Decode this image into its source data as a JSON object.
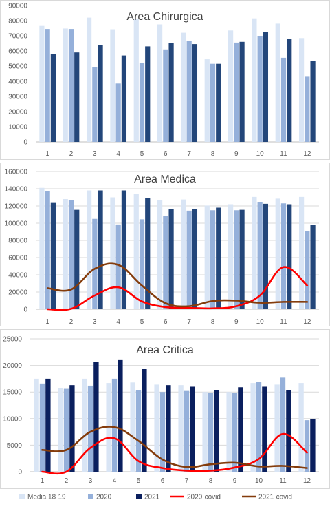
{
  "colors": {
    "media": "#d9e5f5",
    "y2020": "#95b0da",
    "y2021": "#23467a",
    "y2021_critica": "#0a1f5e",
    "covid2020": "#ff0000",
    "covid2021": "#843c0c",
    "grid": "#d9d9d9",
    "axis_text": "#595959"
  },
  "legend": [
    {
      "label": "Media 18-19",
      "kind": "bar",
      "color_key": "media"
    },
    {
      "label": "2020",
      "kind": "bar",
      "color_key": "y2020"
    },
    {
      "label": "2021",
      "kind": "bar",
      "color_key": "y2021_critica"
    },
    {
      "label": "2020-covid",
      "kind": "line",
      "color_key": "covid2020"
    },
    {
      "label": "2021-covid",
      "kind": "line",
      "color_key": "covid2021"
    }
  ],
  "chart_data": [
    {
      "type": "bar",
      "title": "Area Chirurgica",
      "categories": [
        "1",
        "2",
        "3",
        "4",
        "5",
        "6",
        "7",
        "8",
        "9",
        "10",
        "11",
        "12"
      ],
      "ylim": [
        0,
        90000
      ],
      "yticks": [
        "0",
        "10000",
        "20000",
        "30000",
        "40000",
        "50000",
        "60000",
        "70000",
        "80000",
        "90000"
      ],
      "grid": false,
      "series": [
        {
          "name": "Media 18-19",
          "type": "bar",
          "color_key": "media",
          "values": [
            76500,
            74800,
            82000,
            74300,
            81000,
            77500,
            72000,
            54500,
            73500,
            81500,
            78000,
            68500
          ]
        },
        {
          "name": "2020",
          "type": "bar",
          "color_key": "y2020",
          "values": [
            74500,
            74500,
            49500,
            38500,
            52000,
            61000,
            66500,
            51500,
            65500,
            70000,
            55500,
            43000
          ]
        },
        {
          "name": "2021",
          "type": "bar",
          "color_key": "y2021",
          "values": [
            58000,
            59000,
            64000,
            57000,
            63000,
            65000,
            64500,
            51500,
            66000,
            72500,
            68000,
            53500
          ]
        }
      ]
    },
    {
      "type": "bar",
      "title": "Area Medica",
      "categories": [
        "1",
        "2",
        "3",
        "4",
        "5",
        "6",
        "7",
        "8",
        "9",
        "10",
        "11",
        "12"
      ],
      "ylim": [
        0,
        160000
      ],
      "yticks": [
        "0",
        "20000",
        "40000",
        "60000",
        "80000",
        "100000",
        "120000",
        "140000",
        "160000"
      ],
      "grid": true,
      "series": [
        {
          "name": "Media 18-19",
          "type": "bar",
          "color_key": "media",
          "values": [
            141000,
            128000,
            138000,
            130000,
            134000,
            127000,
            127500,
            120500,
            122000,
            130500,
            128500,
            130500
          ]
        },
        {
          "name": "2020",
          "type": "bar",
          "color_key": "y2020",
          "values": [
            137000,
            127000,
            105000,
            98500,
            104500,
            108000,
            114500,
            115000,
            115000,
            124000,
            123000,
            91000
          ]
        },
        {
          "name": "2021",
          "type": "bar",
          "color_key": "y2021",
          "values": [
            123500,
            115500,
            138000,
            138000,
            129000,
            116500,
            116000,
            118000,
            115500,
            122500,
            122000,
            98000
          ]
        },
        {
          "name": "2020-covid",
          "type": "line",
          "color_key": "covid2020",
          "values": [
            0,
            500,
            16000,
            25500,
            9000,
            2500,
            1500,
            1000,
            3500,
            16000,
            49000,
            27500
          ]
        },
        {
          "name": "2021-covid",
          "type": "line",
          "color_key": "covid2021",
          "values": [
            24500,
            23000,
            47000,
            51500,
            27500,
            7000,
            3500,
            9500,
            10000,
            7500,
            8500,
            8500
          ]
        }
      ]
    },
    {
      "type": "bar",
      "title": "Area Critica",
      "categories": [
        "1",
        "2",
        "3",
        "4",
        "5",
        "6",
        "7",
        "8",
        "9",
        "10",
        "11",
        "12"
      ],
      "ylim": [
        0,
        25000
      ],
      "yticks": [
        "0",
        "5000",
        "10000",
        "15000",
        "20000",
        "25000"
      ],
      "grid": true,
      "series": [
        {
          "name": "Media 18-19",
          "type": "bar",
          "color_key": "media",
          "values": [
            17500,
            15800,
            17500,
            16700,
            16800,
            16400,
            16300,
            15000,
            15000,
            16700,
            16400,
            16700
          ]
        },
        {
          "name": "2020",
          "type": "bar",
          "color_key": "y2020",
          "values": [
            16600,
            15600,
            16200,
            17500,
            15300,
            15000,
            15200,
            14900,
            14800,
            16900,
            17700,
            9700
          ]
        },
        {
          "name": "2021",
          "type": "bar",
          "color_key": "y2021_critica",
          "values": [
            17500,
            16300,
            20700,
            21000,
            19300,
            16300,
            16000,
            15400,
            15900,
            16000,
            15300,
            9900
          ]
        },
        {
          "name": "2020-covid",
          "type": "line",
          "color_key": "covid2020",
          "values": [
            0,
            0,
            4500,
            6300,
            2000,
            700,
            200,
            200,
            800,
            2400,
            7100,
            3600
          ]
        },
        {
          "name": "2021-covid",
          "type": "line",
          "color_key": "covid2021",
          "values": [
            4100,
            4100,
            7500,
            8400,
            5800,
            2300,
            900,
            1400,
            1700,
            1000,
            1100,
            700
          ]
        }
      ]
    }
  ]
}
